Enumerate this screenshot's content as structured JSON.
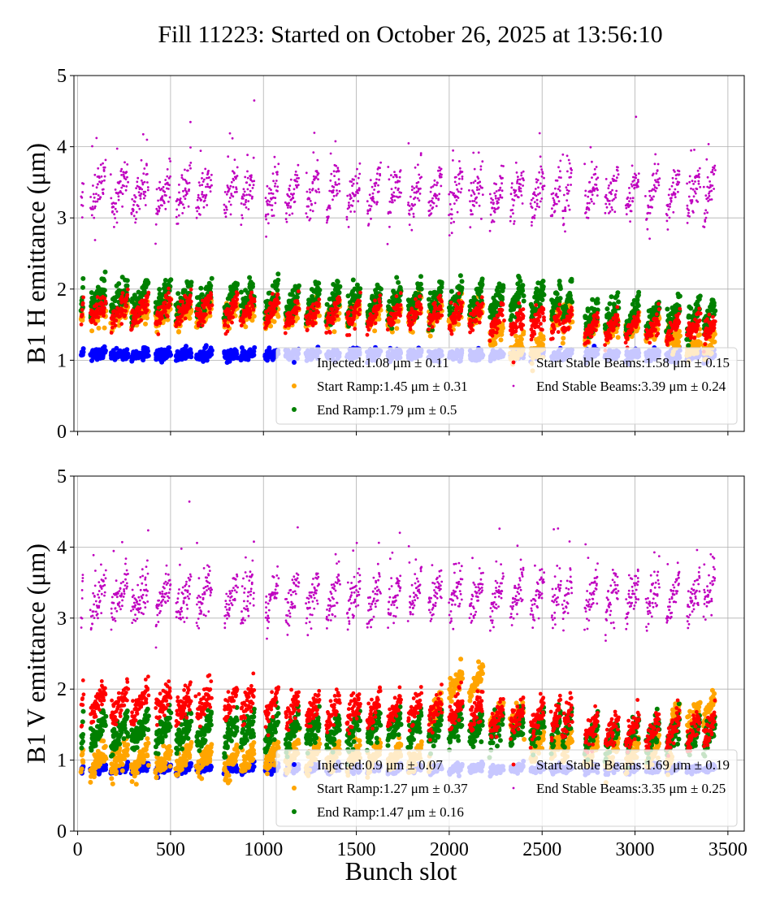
{
  "title": "Fill 11223: Started on October 26, 2025 at 13:56:10",
  "chart_data": [
    {
      "type": "scatter",
      "ylabel": "B1 H emittance (μm)",
      "xlabel": "",
      "xlim": [
        -20,
        3588
      ],
      "ylim": [
        0,
        5
      ],
      "xticks": [
        0,
        500,
        1000,
        1500,
        2000,
        2500,
        3000,
        3500
      ],
      "xtick_labels_shown": false,
      "yticks": [
        0,
        1,
        2,
        3,
        4,
        5
      ],
      "grid": true,
      "legend_placement": "lower-right",
      "legend": [
        {
          "name": "Injected",
          "text": "Injected:1.08 μm ± 0.11",
          "color": "#0000ff"
        },
        {
          "name": "Start Ramp",
          "text": "Start Ramp:1.45 μm ± 0.31",
          "color": "#ffa500"
        },
        {
          "name": "End Ramp",
          "text": "End Ramp:1.79 μm ± 0.5",
          "color": "#008000"
        },
        {
          "name": "Start Stable Beams",
          "text": "Start Stable Beams:1.58 μm ± 0.15",
          "color": "#ff0000"
        },
        {
          "name": "End Stable Beams",
          "text": "End Stable Beams:3.39 μm ± 0.24",
          "color": "#bf00bf"
        }
      ],
      "series": [
        {
          "name": "Injected",
          "color": "#0000ff",
          "levels": [
            [
              0,
              1.08
            ]
          ],
          "spread": 0.04,
          "trend": 0.05
        },
        {
          "name": "Start Ramp",
          "color": "#ffa500",
          "levels": [
            [
              0,
              1.65
            ],
            [
              2200,
              1.35
            ],
            [
              2300,
              1.15
            ],
            [
              2550,
              1.6
            ],
            [
              2700,
              1.45
            ],
            [
              3200,
              1.2
            ]
          ],
          "spread": 0.08,
          "trend": 0.2
        },
        {
          "name": "End Ramp",
          "color": "#008000",
          "levels": [
            [
              0,
              1.85
            ],
            [
              1100,
              1.82
            ],
            [
              2700,
              1.6
            ]
          ],
          "spread": 0.1,
          "trend": 0.35
        },
        {
          "name": "Start Stable Beams",
          "color": "#ff0000",
          "levels": [
            [
              0,
              1.7
            ],
            [
              1100,
              1.65
            ],
            [
              2200,
              1.55
            ],
            [
              2700,
              1.45
            ]
          ],
          "spread": 0.08,
          "trend": 0.3
        },
        {
          "name": "End Stable Beams",
          "color": "#bf00bf",
          "levels": [
            [
              0,
              3.35
            ]
          ],
          "spread": 0.15,
          "trend": 0.5
        }
      ]
    },
    {
      "type": "scatter",
      "ylabel": "B1 V emittance (μm)",
      "xlabel": "Bunch slot",
      "xlim": [
        -20,
        3588
      ],
      "ylim": [
        0,
        5
      ],
      "xticks": [
        0,
        500,
        1000,
        1500,
        2000,
        2500,
        3000,
        3500
      ],
      "xtick_labels_shown": true,
      "yticks": [
        0,
        1,
        2,
        3,
        4,
        5
      ],
      "grid": true,
      "legend_placement": "lower-right",
      "legend": [
        {
          "name": "Injected",
          "text": "Injected:0.9 μm ± 0.07",
          "color": "#0000ff"
        },
        {
          "name": "Start Ramp",
          "text": "Start Ramp:1.27 μm ± 0.37",
          "color": "#ffa500"
        },
        {
          "name": "End Ramp",
          "text": "End Ramp:1.47 μm ± 0.16",
          "color": "#008000"
        },
        {
          "name": "Start Stable Beams",
          "text": "Start Stable Beams:1.69 μm ± 0.19",
          "color": "#ff0000"
        },
        {
          "name": "End Stable Beams",
          "text": "End Stable Beams:3.35 μm ± 0.25",
          "color": "#bf00bf"
        }
      ],
      "series": [
        {
          "name": "Injected",
          "color": "#0000ff",
          "levels": [
            [
              0,
              0.88
            ]
          ],
          "spread": 0.03,
          "trend": 0.05
        },
        {
          "name": "Start Ramp",
          "color": "#ffa500",
          "levels": [
            [
              0,
              1.0
            ],
            [
              1000,
              1.05
            ],
            [
              1900,
              1.7
            ],
            [
              2000,
              2.1
            ],
            [
              2200,
              1.6
            ],
            [
              2400,
              1.2
            ],
            [
              2700,
              1.1
            ],
            [
              3200,
              1.6
            ],
            [
              3350,
              1.7
            ]
          ],
          "spread": 0.08,
          "trend": 0.3
        },
        {
          "name": "End Ramp",
          "color": "#008000",
          "levels": [
            [
              0,
              1.4
            ],
            [
              1500,
              1.45
            ],
            [
              2700,
              1.35
            ]
          ],
          "spread": 0.1,
          "trend": 0.35
        },
        {
          "name": "Start Stable Beams",
          "color": "#ff0000",
          "levels": [
            [
              0,
              1.8
            ],
            [
              1100,
              1.7
            ],
            [
              2200,
              1.6
            ],
            [
              2700,
              1.42
            ]
          ],
          "spread": 0.1,
          "trend": 0.35
        },
        {
          "name": "End Stable Beams",
          "color": "#bf00bf",
          "levels": [
            [
              0,
              3.3
            ]
          ],
          "spread": 0.15,
          "trend": 0.5
        }
      ]
    }
  ],
  "trains": [
    [
      20,
      30
    ],
    [
      70,
      150
    ],
    [
      180,
      270
    ],
    [
      290,
      380
    ],
    [
      420,
      500
    ],
    [
      530,
      610
    ],
    [
      640,
      720
    ],
    [
      790,
      860
    ],
    [
      880,
      950
    ],
    [
      1010,
      1080
    ],
    [
      1120,
      1190
    ],
    [
      1230,
      1300
    ],
    [
      1340,
      1410
    ],
    [
      1450,
      1520
    ],
    [
      1560,
      1630
    ],
    [
      1670,
      1740
    ],
    [
      1780,
      1850
    ],
    [
      1890,
      1960
    ],
    [
      2000,
      2070
    ],
    [
      2110,
      2180
    ],
    [
      2220,
      2290
    ],
    [
      2330,
      2400
    ],
    [
      2440,
      2510
    ],
    [
      2550,
      2600
    ],
    [
      2610,
      2660
    ],
    [
      2730,
      2800
    ],
    [
      2840,
      2910
    ],
    [
      2950,
      3020
    ],
    [
      3060,
      3130
    ],
    [
      3170,
      3240
    ],
    [
      3280,
      3350
    ],
    [
      3370,
      3430
    ]
  ]
}
